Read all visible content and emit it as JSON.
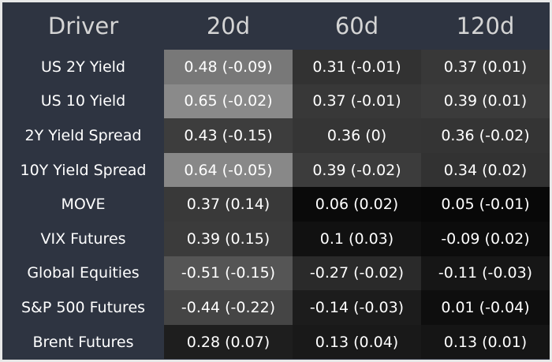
{
  "table": {
    "header": [
      "Driver",
      "20d",
      "60d",
      "120d"
    ],
    "rows": [
      [
        "US 2Y Yield",
        "0.48 (-0.09)",
        "0.31 (-0.01)",
        "0.37 (0.01)"
      ],
      [
        "US 10 Yield",
        "0.65 (-0.02)",
        "0.37 (-0.01)",
        "0.39 (0.01)"
      ],
      [
        "2Y Yield Spread",
        "0.43 (-0.15)",
        "0.36 (0)",
        "0.36 (-0.02)"
      ],
      [
        "10Y Yield Spread",
        "0.64 (-0.05)",
        "0.39 (-0.02)",
        "0.34 (0.02)"
      ],
      [
        "MOVE",
        "0.37 (0.14)",
        "0.06 (0.02)",
        "0.05 (-0.01)"
      ],
      [
        "VIX Futures",
        "0.39 (0.15)",
        "0.1 (0.03)",
        "-0.09 (0.02)"
      ],
      [
        "Global Equities",
        "-0.51 (-0.15)",
        "-0.27 (-0.02)",
        "-0.11 (-0.03)"
      ],
      [
        "S&P 500 Futures",
        "-0.44 (-0.22)",
        "-0.14 (-0.03)",
        "0.01 (-0.04)"
      ],
      [
        "Brent Futures",
        "0.28 (0.07)",
        "0.13 (0.04)",
        "0.13 (0.01)"
      ]
    ],
    "cell_colors": [
      [
        "#787878",
        "#323232",
        "#383838"
      ],
      [
        "#8a8a8a",
        "#383838",
        "#3b3b3b"
      ],
      [
        "#3d3d3d",
        "#353535",
        "#343434"
      ],
      [
        "#888888",
        "#3c3c3c",
        "#323232"
      ],
      [
        "#393939",
        "#0a0a0a",
        "#080808"
      ],
      [
        "#3b3b3b",
        "#111111",
        "#0c0c0c"
      ],
      [
        "#555555",
        "#2a2a2a",
        "#161616"
      ],
      [
        "#454545",
        "#1c1c1c",
        "#0e0e0e"
      ],
      [
        "#1e1e1e",
        "#191919",
        "#151515"
      ]
    ],
    "label_color": "#2e3441"
  }
}
